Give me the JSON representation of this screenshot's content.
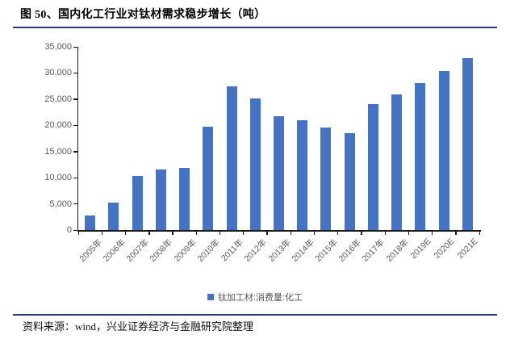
{
  "header": {
    "title": "图 50、国内化工行业对钛材需求稳步增长（吨）"
  },
  "chart_data": {
    "type": "bar",
    "title": "国内化工行业对钛材需求稳步增长（吨）",
    "categories": [
      "2005年",
      "2006年",
      "2007年",
      "2008年",
      "2009年",
      "2010年",
      "2011年",
      "2012年",
      "2013年",
      "2014年",
      "2015年",
      "2016年",
      "2017年",
      "2018年",
      "2019E",
      "2020E",
      "2021E"
    ],
    "series": [
      {
        "name": "钛加工材:消费量:化工",
        "values": [
          2800,
          5300,
          10300,
          11500,
          11900,
          19800,
          27400,
          25200,
          21800,
          21000,
          19600,
          18500,
          24100,
          25900,
          28000,
          30300,
          32900
        ]
      }
    ],
    "xlabel": "",
    "ylabel": "",
    "ylim": [
      0,
      35000
    ],
    "ytick_interval": 5000,
    "ytick_labels": [
      "0",
      "5,000",
      "10,000",
      "15,000",
      "20,000",
      "25,000",
      "30,000",
      "35,000"
    ],
    "grid": false,
    "legend_position": "bottom",
    "bar_color": "#4472C4",
    "axis_color": "#1a1a1a",
    "tick_label_color": "#595959"
  },
  "legend": {
    "label": "钛加工材:消费量:化工",
    "marker_color": "#4472C4"
  },
  "footer": {
    "source": "资料来源：wind，兴业证券经济与金融研究院整理"
  },
  "colors": {
    "accent_blue": "#4472C4",
    "rule_navy": "#283B6D"
  }
}
